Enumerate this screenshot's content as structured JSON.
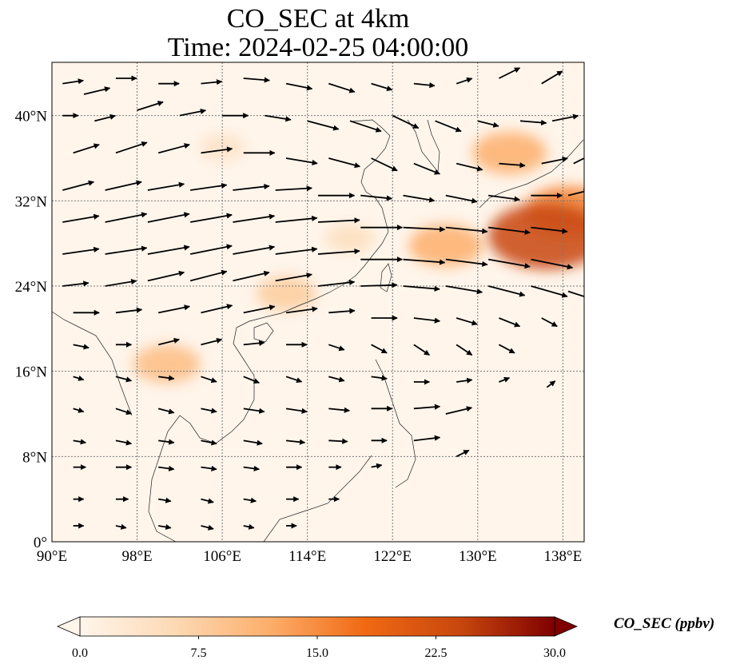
{
  "title": "CO_SEC at 4km",
  "subtitle": "Time: 2024-02-25 04:00:00",
  "map": {
    "lon_range": [
      90,
      140
    ],
    "lat_range": [
      0,
      45
    ],
    "lon_ticks": [
      "90°E",
      "98°E",
      "106°E",
      "114°E",
      "122°E",
      "130°E",
      "138°E"
    ],
    "lat_ticks": [
      "0°",
      "8°N",
      "16°N",
      "24°N",
      "32°N",
      "40°N"
    ],
    "gridlines": true,
    "background_color": "#fff5eb"
  },
  "colorbar": {
    "label": "CO_SEC (ppbv)",
    "ticks": [
      "0.0",
      "7.5",
      "15.0",
      "22.5",
      "30.0"
    ],
    "range": [
      0,
      30
    ],
    "colors": [
      "#fff5eb",
      "#fdd9b4",
      "#fdae6b",
      "#f16913",
      "#c8470e",
      "#7f0000"
    ]
  },
  "plumes": [
    {
      "lon": 133,
      "lat": 36.5,
      "value": 12
    },
    {
      "lon": 138.5,
      "lat": 31,
      "value": 16
    },
    {
      "lon": 136.5,
      "lat": 28.7,
      "value": 24
    },
    {
      "lon": 127,
      "lat": 27.8,
      "value": 12
    },
    {
      "lon": 112,
      "lat": 23.3,
      "value": 8
    },
    {
      "lon": 100.8,
      "lat": 16.7,
      "value": 10
    },
    {
      "lon": 118,
      "lat": 28.5,
      "value": 5
    },
    {
      "lon": 106,
      "lat": 37,
      "value": 4
    }
  ],
  "wind_vectors": [
    [
      91,
      43,
      2,
      0.3
    ],
    [
      93,
      42,
      2.5,
      0.6
    ],
    [
      96,
      43.5,
      2,
      0
    ],
    [
      100,
      43,
      2,
      0
    ],
    [
      104,
      43,
      2,
      0.2
    ],
    [
      108,
      43.5,
      2.5,
      -0.2
    ],
    [
      112,
      43,
      2.5,
      -0.5
    ],
    [
      116,
      43,
      2.5,
      -0.8
    ],
    [
      120,
      43,
      2,
      -0.6
    ],
    [
      124,
      43,
      2,
      -0.2
    ],
    [
      128,
      43,
      1.5,
      0.5
    ],
    [
      132,
      43.5,
      2,
      1
    ],
    [
      136,
      43,
      2,
      1.2
    ],
    [
      91,
      40,
      1.5,
      0
    ],
    [
      94,
      39.5,
      2,
      0.5
    ],
    [
      98,
      40.5,
      2.5,
      0.8
    ],
    [
      102,
      40,
      2.5,
      0.5
    ],
    [
      106,
      40,
      2.5,
      0
    ],
    [
      110,
      40,
      2.5,
      -0.4
    ],
    [
      114,
      39.5,
      3,
      -0.8
    ],
    [
      118,
      39.5,
      3,
      -1
    ],
    [
      122,
      40,
      2.5,
      -1.2
    ],
    [
      126,
      39.5,
      2.5,
      -1
    ],
    [
      130,
      39.5,
      2,
      -0.5
    ],
    [
      134,
      39.5,
      2.5,
      -0.2
    ],
    [
      137,
      39.5,
      2.5,
      0.5
    ],
    [
      92,
      36.5,
      2.5,
      0.8
    ],
    [
      96,
      36.5,
      3,
      1
    ],
    [
      100,
      36.5,
      3,
      0.8
    ],
    [
      104,
      36.5,
      3,
      0.4
    ],
    [
      108,
      36.5,
      3,
      0
    ],
    [
      112,
      36,
      3,
      -0.5
    ],
    [
      116,
      36,
      3,
      -0.8
    ],
    [
      120,
      36,
      2.5,
      -1.2
    ],
    [
      124,
      35.5,
      2.5,
      -1
    ],
    [
      128,
      35.5,
      2.5,
      -0.6
    ],
    [
      132,
      35.5,
      2.5,
      -0.2
    ],
    [
      136,
      35.5,
      2.5,
      0.5
    ],
    [
      139,
      35.5,
      2,
      1
    ],
    [
      91,
      33,
      3,
      0.8
    ],
    [
      95,
      33,
      3.5,
      0.8
    ],
    [
      99,
      33,
      3.5,
      0.6
    ],
    [
      103,
      33,
      3.5,
      0.5
    ],
    [
      107,
      33,
      3.5,
      0.4
    ],
    [
      111,
      33,
      3.5,
      0.2
    ],
    [
      115,
      32.5,
      3.5,
      0
    ],
    [
      119,
      32.5,
      3,
      -0.3
    ],
    [
      123,
      32.5,
      3,
      -0.5
    ],
    [
      127,
      32.5,
      3,
      -0.6
    ],
    [
      131,
      32.5,
      3,
      -0.4
    ],
    [
      135,
      32.5,
      3,
      0
    ],
    [
      138.5,
      32.5,
      2,
      0.5
    ],
    [
      91,
      30,
      3.5,
      0.6
    ],
    [
      95,
      30,
      4,
      0.8
    ],
    [
      99,
      30,
      4,
      0.8
    ],
    [
      103,
      30,
      4,
      0.7
    ],
    [
      107,
      30,
      4,
      0.6
    ],
    [
      111,
      30,
      4,
      0.4
    ],
    [
      115,
      30,
      4,
      0.2
    ],
    [
      119,
      29.5,
      4,
      0
    ],
    [
      123,
      29.5,
      4,
      -0.2
    ],
    [
      127,
      29.5,
      4,
      -0.4
    ],
    [
      131,
      29.5,
      4,
      -0.5
    ],
    [
      135,
      29.5,
      3.5,
      -0.4
    ],
    [
      91,
      27,
      3.5,
      0.5
    ],
    [
      95,
      27,
      4,
      0.6
    ],
    [
      99,
      27,
      4,
      0.7
    ],
    [
      103,
      27,
      4,
      0.8
    ],
    [
      107,
      27,
      4,
      0.7
    ],
    [
      111,
      27,
      4,
      0.5
    ],
    [
      115,
      27,
      4,
      0.3
    ],
    [
      119,
      26.5,
      4,
      0
    ],
    [
      123,
      26.5,
      4,
      -0.3
    ],
    [
      127,
      26.5,
      4,
      -0.5
    ],
    [
      131,
      26.5,
      4,
      -0.7
    ],
    [
      135,
      26.5,
      4,
      -0.8
    ],
    [
      91,
      24,
      2.5,
      0.3
    ],
    [
      95,
      24,
      3,
      0.5
    ],
    [
      99,
      24.5,
      3.5,
      0.8
    ],
    [
      103,
      24.5,
      3.5,
      0.9
    ],
    [
      107,
      24.5,
      3.5,
      0.8
    ],
    [
      111,
      24.5,
      3.5,
      0.6
    ],
    [
      115,
      24,
      3.5,
      0.4
    ],
    [
      119,
      24,
      3.5,
      0.1
    ],
    [
      123,
      24,
      3.5,
      -0.3
    ],
    [
      127,
      24,
      3.5,
      -0.6
    ],
    [
      131,
      24,
      3.5,
      -0.9
    ],
    [
      135,
      24,
      3.5,
      -1
    ],
    [
      138.5,
      23.5,
      2.5,
      -0.8
    ],
    [
      92,
      21.5,
      2.5,
      0
    ],
    [
      96,
      21.5,
      2.5,
      0.3
    ],
    [
      100,
      21.5,
      3,
      0.6
    ],
    [
      104,
      21.5,
      3,
      0.7
    ],
    [
      108,
      21.5,
      3,
      0.6
    ],
    [
      112,
      21.5,
      3,
      0.4
    ],
    [
      116,
      21.5,
      2.5,
      0.2
    ],
    [
      120,
      21,
      2.5,
      0
    ],
    [
      124,
      21,
      2.5,
      -0.3
    ],
    [
      128,
      21,
      2,
      -0.6
    ],
    [
      132,
      21,
      2,
      -0.8
    ],
    [
      136,
      21,
      1.5,
      -0.8
    ],
    [
      92,
      18.5,
      1.5,
      -0.3
    ],
    [
      96,
      18.5,
      1.5,
      0
    ],
    [
      100,
      18.5,
      2,
      0.5
    ],
    [
      104,
      18.5,
      2,
      0.5
    ],
    [
      108,
      18.5,
      2,
      0.2
    ],
    [
      112,
      18.5,
      2,
      0
    ],
    [
      116,
      18.5,
      1.5,
      -0.5
    ],
    [
      120,
      18.5,
      1.5,
      -0.8
    ],
    [
      124,
      18.5,
      1.5,
      -1
    ],
    [
      128,
      18.5,
      1.5,
      -1
    ],
    [
      132,
      18.5,
      1.5,
      -0.8
    ],
    [
      92,
      15.5,
      1,
      -0.3
    ],
    [
      96,
      15.5,
      1.5,
      -0.4
    ],
    [
      100,
      15.5,
      1.5,
      -0.2
    ],
    [
      104,
      15.5,
      1.5,
      -0.5
    ],
    [
      108,
      15.5,
      1.5,
      -0.6
    ],
    [
      112,
      15.5,
      1.5,
      -0.5
    ],
    [
      116,
      15.5,
      1.5,
      -0.4
    ],
    [
      120,
      15.5,
      1.5,
      -0.2
    ],
    [
      124,
      15,
      1.5,
      0
    ],
    [
      128,
      15,
      1.5,
      0.2
    ],
    [
      132,
      15,
      1,
      0.4
    ],
    [
      136.5,
      14.5,
      0.8,
      0.6
    ],
    [
      92,
      12.5,
      1,
      -0.3
    ],
    [
      96,
      12.5,
      1.5,
      -0.5
    ],
    [
      100,
      12.5,
      1.5,
      -0.4
    ],
    [
      104,
      12.5,
      1.5,
      -0.3
    ],
    [
      108,
      12.5,
      2,
      -0.3
    ],
    [
      112,
      12.5,
      2,
      -0.3
    ],
    [
      116,
      12.5,
      2,
      -0.2
    ],
    [
      120,
      12.5,
      2,
      0
    ],
    [
      124,
      12.5,
      2.5,
      0.2
    ],
    [
      127,
      12,
      2.5,
      0.6
    ],
    [
      92,
      9.5,
      1.2,
      -0.2
    ],
    [
      96,
      9.5,
      1.5,
      -0.3
    ],
    [
      100,
      9.5,
      1.5,
      -0.2
    ],
    [
      104,
      9.5,
      1.5,
      -0.3
    ],
    [
      108,
      9.5,
      1.8,
      -0.3
    ],
    [
      112,
      9.5,
      1.8,
      -0.2
    ],
    [
      116,
      9.5,
      1.8,
      -0.1
    ],
    [
      120,
      9.5,
      1.5,
      0
    ],
    [
      124,
      9.5,
      2.5,
      0.3
    ],
    [
      128,
      8,
      1.2,
      0.6
    ],
    [
      92,
      7,
      1.2,
      0
    ],
    [
      96,
      7,
      1.5,
      0
    ],
    [
      100,
      7,
      1.5,
      -0.2
    ],
    [
      104,
      7,
      1.5,
      -0.2
    ],
    [
      108,
      7,
      1.5,
      -0.2
    ],
    [
      112,
      7,
      1.5,
      0
    ],
    [
      116,
      7,
      1.2,
      0
    ],
    [
      120,
      7,
      1,
      0.2
    ],
    [
      92,
      4,
      1,
      0
    ],
    [
      96,
      4,
      1.2,
      0
    ],
    [
      100,
      4,
      1.2,
      -0.2
    ],
    [
      104,
      4,
      1.2,
      -0.3
    ],
    [
      108,
      4,
      1.2,
      -0.2
    ],
    [
      112,
      4,
      1.2,
      0
    ],
    [
      116,
      4,
      1,
      0
    ],
    [
      92,
      1.5,
      1,
      0
    ],
    [
      96,
      1.5,
      1,
      -0.2
    ],
    [
      100,
      1.5,
      1.2,
      -0.2
    ],
    [
      104,
      1.5,
      1.2,
      -0.3
    ],
    [
      108,
      1.5,
      1,
      -0.2
    ],
    [
      112,
      1.5,
      1,
      0
    ]
  ]
}
